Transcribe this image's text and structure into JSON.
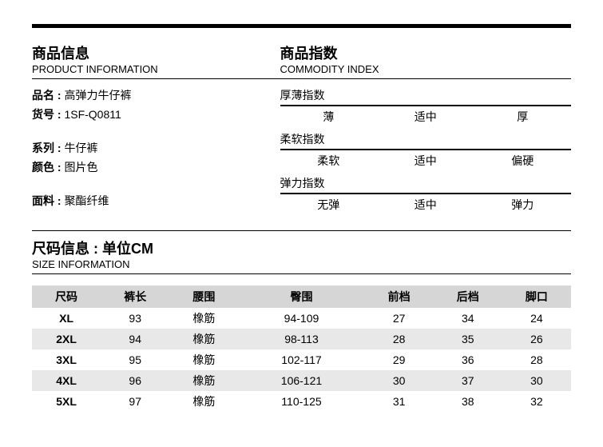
{
  "product": {
    "title_cn": "商品信息",
    "title_en": "PRODUCT INFORMATION",
    "fields": {
      "name_label": "品名 :",
      "name_value": "高弹力牛仔裤",
      "sku_label": "货号 :",
      "sku_value": "1SF-Q0811",
      "series_label": "系列 :",
      "series_value": "牛仔裤",
      "color_label": "颜色 :",
      "color_value": "图片色",
      "fabric_label": "面料 :",
      "fabric_value": "聚酯纤维"
    }
  },
  "index": {
    "title_cn": "商品指数",
    "title_en": "COMMODITY INDEX",
    "thickness": {
      "label": "厚薄指数",
      "opts": [
        "薄",
        "适中",
        "厚"
      ]
    },
    "softness": {
      "label": "柔软指数",
      "opts": [
        "柔软",
        "适中",
        "偏硬"
      ]
    },
    "stretch": {
      "label": "弹力指数",
      "opts": [
        "无弹",
        "适中",
        "弹力"
      ]
    }
  },
  "size": {
    "title_cn": "尺码信息 : 单位CM",
    "title_en": "SIZE INFORMATION",
    "headers": [
      "尺码",
      "裤长",
      "腰围",
      "臀围",
      "前档",
      "后档",
      "脚口"
    ],
    "rows": [
      [
        "XL",
        "93",
        "橡筋",
        "94-109",
        "27",
        "34",
        "24"
      ],
      [
        "2XL",
        "94",
        "橡筋",
        "98-113",
        "28",
        "35",
        "26"
      ],
      [
        "3XL",
        "95",
        "橡筋",
        "102-117",
        "29",
        "36",
        "28"
      ],
      [
        "4XL",
        "96",
        "橡筋",
        "106-121",
        "30",
        "37",
        "30"
      ],
      [
        "5XL",
        "97",
        "橡筋",
        "110-125",
        "31",
        "38",
        "32"
      ]
    ]
  }
}
